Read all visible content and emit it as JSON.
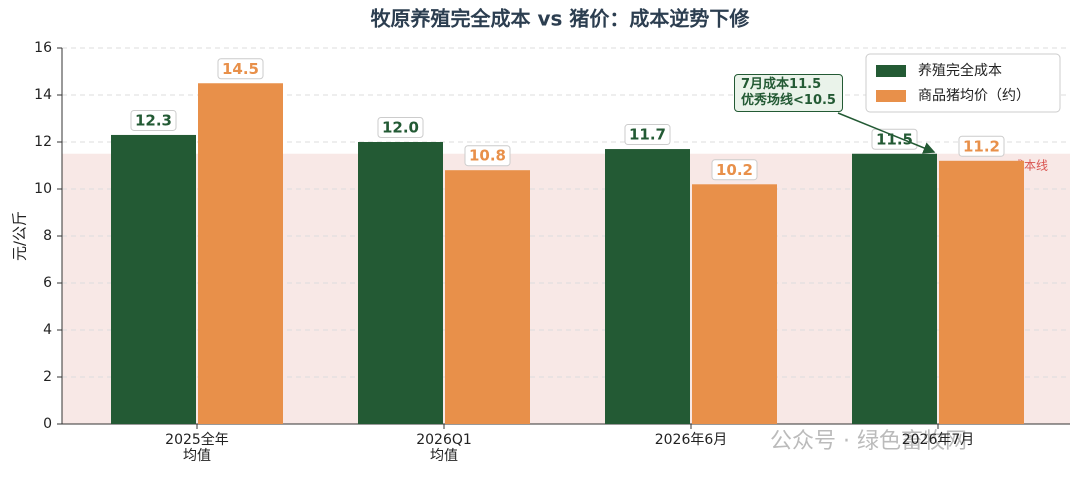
{
  "chart_data": {
    "type": "bar",
    "title": "牧原养殖完全成本 vs 猪价：成本逆势下修",
    "y_label": "元/公斤",
    "categories": [
      "2025全年\n均值",
      "2026Q1\n均值",
      "2026年6月",
      "2026年7月"
    ],
    "series": [
      {
        "name": "养殖完全成本",
        "color": "#235a34",
        "values": [
          12.3,
          12.0,
          11.7,
          11.5
        ],
        "value_labels": [
          "12.3",
          "12.0",
          "11.7",
          "11.5"
        ]
      },
      {
        "name": "商品猪均价（约）",
        "color": "#e8904a",
        "values": [
          14.5,
          10.8,
          10.2,
          11.2
        ],
        "value_labels": [
          "14.5",
          "10.8",
          "10.2",
          "11.2"
        ]
      }
    ],
    "ylim": [
      0,
      16
    ],
    "yticks": [
      0,
      2,
      4,
      6,
      8,
      10,
      12,
      14,
      16
    ],
    "grid": true,
    "legend": "upper right",
    "ref_band": {
      "value": 11.5,
      "label": "成本线",
      "color": "#f8e8e6"
    },
    "annotation": "7月成本11.5\n优秀场线<10.5",
    "watermark": "公众号 · 绿色畜牧网"
  }
}
